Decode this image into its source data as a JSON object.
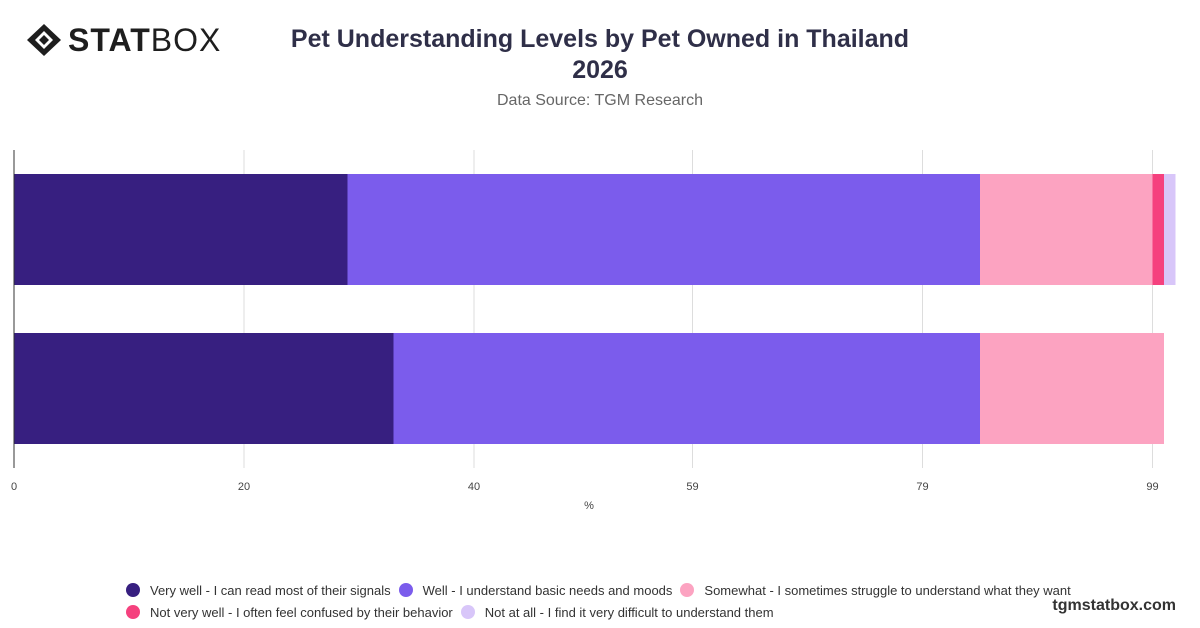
{
  "logo": {
    "strong": "STAT",
    "light": "BOX"
  },
  "title_line1": "Pet Understanding Levels by Pet Owned in Thailand",
  "title_line2": "2026",
  "subtitle": "Data Source: TGM Research",
  "brand": "tgmstatbox.com",
  "colors": {
    "very_well": "#371f80",
    "well": "#7b5cec",
    "somewhat": "#fca3c1",
    "not_very_well": "#f5417e",
    "not_at_all": "#d8c6f9",
    "grid": "#dddddd",
    "axis": "#333333"
  },
  "legend": [
    [
      "Very well - I can read most of their signals",
      "Well - I understand basic needs and moods",
      "Somewhat - I sometimes struggle to understand what they want"
    ],
    [
      "Not very well - I often feel confused by their behavior",
      "Not at all - I find it very difficult to understand them"
    ]
  ],
  "chart_data": {
    "type": "bar",
    "orientation": "horizontal",
    "stacked": true,
    "categories": [
      "",
      ""
    ],
    "xlabel": "%",
    "ylabel": "",
    "xlim": [
      0,
      100
    ],
    "xticks": [
      "0",
      "20",
      "40",
      "59",
      "79",
      "99"
    ],
    "grid": true,
    "legend_position": "bottom",
    "series": [
      {
        "name": "Very well - I can read most of their signals",
        "color": "#371f80",
        "values": [
          29,
          33
        ]
      },
      {
        "name": "Well - I understand basic needs and moods",
        "color": "#7b5cec",
        "values": [
          55,
          51
        ]
      },
      {
        "name": "Somewhat - I sometimes struggle to understand what they want",
        "color": "#fca3c1",
        "values": [
          15,
          16
        ]
      },
      {
        "name": "Not very well - I often feel confused by their behavior",
        "color": "#f5417e",
        "values": [
          1,
          0
        ]
      },
      {
        "name": "Not at all - I find it very difficult to understand them",
        "color": "#d8c6f9",
        "values": [
          1,
          0
        ]
      }
    ]
  }
}
